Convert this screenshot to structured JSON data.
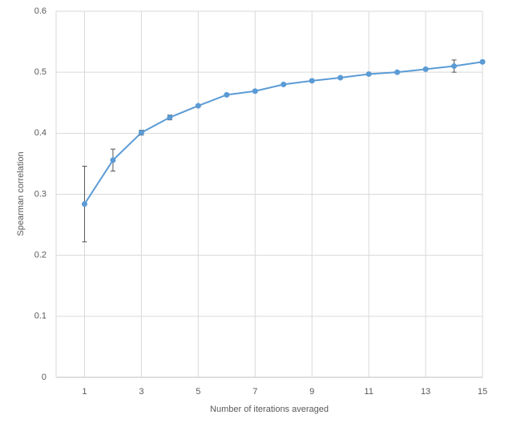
{
  "chart_data": {
    "type": "line",
    "x": [
      1,
      2,
      3,
      4,
      5,
      6,
      7,
      8,
      9,
      10,
      11,
      12,
      13,
      14,
      15
    ],
    "values": [
      0.284,
      0.356,
      0.401,
      0.426,
      0.445,
      0.463,
      0.469,
      0.48,
      0.486,
      0.491,
      0.497,
      0.5,
      0.505,
      0.51,
      0.517
    ],
    "errors": [
      0.062,
      0.018,
      0.004,
      0.004,
      0.002,
      0.002,
      0.002,
      0.002,
      0.002,
      0.002,
      0.002,
      0.002,
      0.002,
      0.01,
      0.002
    ],
    "color": "#5b9bd5",
    "error_color": "#555555",
    "xlim": [
      0,
      15
    ],
    "xticks": [
      1,
      3,
      5,
      7,
      9,
      11,
      13,
      15
    ],
    "ylim": [
      0,
      0.6
    ],
    "yticks": [
      0,
      0.1,
      0.2,
      0.3,
      0.4,
      0.5,
      0.6
    ],
    "grid": true,
    "xlabel": "Number of iterations averaged",
    "ylabel": "Spearman correlation"
  }
}
